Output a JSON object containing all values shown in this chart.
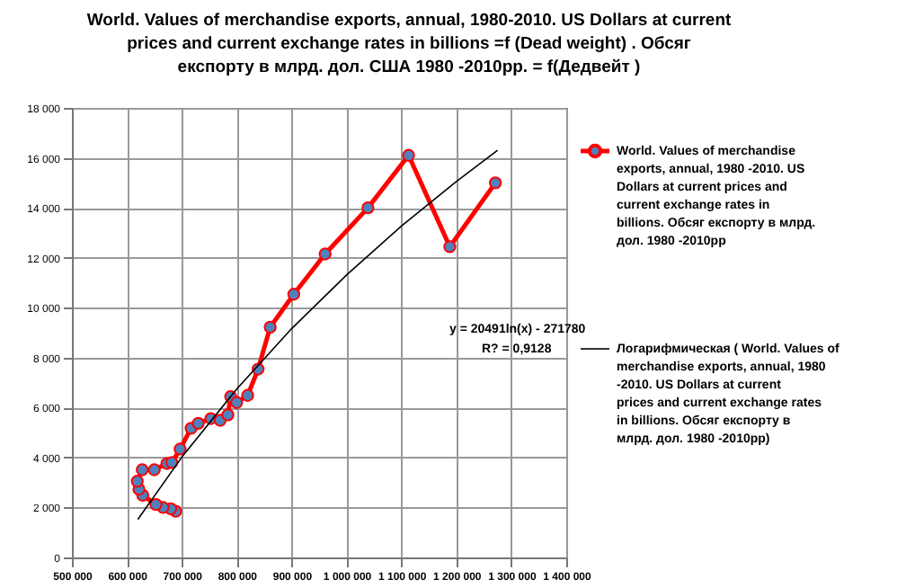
{
  "chart_data": {
    "type": "line",
    "title": "World. Values of merchandise exports, annual, 1980-2010. US Dollars at current prices and current exchange rates in billions =f (Dead weight) . Обсяг експорту в млрд. дол. США 1980 -2010рр. = f(Дедвейт )",
    "annotations": [
      "y = 20491ln(x) - 271780",
      "R? = 0,9128"
    ],
    "xlim": [
      500000,
      1400000
    ],
    "xticks": [
      {
        "value": 500000,
        "label": "500 000"
      },
      {
        "value": 600000,
        "label": "600 000"
      },
      {
        "value": 700000,
        "label": "700 000"
      },
      {
        "value": 800000,
        "label": "800 000"
      },
      {
        "value": 900000,
        "label": "900 000"
      },
      {
        "value": 1000000,
        "label": "1 000 000"
      },
      {
        "value": 1100000,
        "label": "1 100 000"
      },
      {
        "value": 1200000,
        "label": "1 200 000"
      },
      {
        "value": 1300000,
        "label": "1 300 000"
      },
      {
        "value": 1400000,
        "label": "1 400 000"
      }
    ],
    "ylim": [
      0,
      18000
    ],
    "yticks": [
      0,
      {
        "value": 2000,
        "label": "2 000"
      },
      {
        "value": 4000,
        "label": "4 000"
      },
      {
        "value": 6000,
        "label": "6 000"
      },
      {
        "value": 8000,
        "label": "8 000"
      },
      {
        "value": 10000,
        "label": "10 000"
      },
      {
        "value": 12000,
        "label": "12 000"
      },
      {
        "value": 14000,
        "label": "14 000"
      },
      {
        "value": 16000,
        "label": "16 000"
      },
      {
        "value": 18000,
        "label": "18 000"
      }
    ],
    "grid": true,
    "legend": "right",
    "marker": "circle",
    "line_style": "solid",
    "series": [
      {
        "name": "World. Values of merchandise exports, annual, 1980 -2010. US Dollars at current prices and current exchange rates in billions. Обсяг експорту в млрд. дол. 1980 -2010рр",
        "color": "#ff0000",
        "x": [
          689000,
          680000,
          666000,
          653000,
          629000,
          622000,
          619000,
          628000,
          650000,
          673000,
          682000,
          697000,
          717000,
          730000,
          753000,
          770000,
          784000,
          789000,
          800000,
          820000,
          839000,
          861000,
          904000,
          961000,
          1039000,
          1113000,
          1188000,
          1271000
        ],
        "values": [
          1850,
          1950,
          2000,
          2120,
          2490,
          2730,
          3050,
          3510,
          3510,
          3760,
          3800,
          4340,
          5170,
          5370,
          5560,
          5490,
          5710,
          6440,
          6200,
          6490,
          7540,
          9220,
          10540,
          12150,
          14000,
          16100,
          12440,
          15000
        ]
      },
      {
        "name": "Логарифмическая ( World. Values of merchandise exports, annual, 1980 -2010. US Dollars at current prices and current exchange rates in billions. Обсяг експорту в млрд. дол. 1980 -2010рр)",
        "color": "#000000",
        "marker": "none",
        "x": [
          620000,
          700000,
          800000,
          900000,
          1000000,
          1100000,
          1200000,
          1275000
        ],
        "values": [
          1520,
          4010,
          6740,
          9160,
          11310,
          13270,
          15050,
          16300
        ]
      }
    ]
  }
}
